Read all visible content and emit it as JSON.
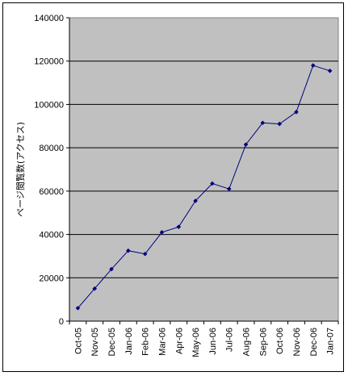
{
  "chart_data": {
    "type": "line",
    "title": "",
    "xlabel": "",
    "ylabel": "ページ閲覧数(アクセス)",
    "categories": [
      "Oct-05",
      "Nov-05",
      "Dec-05",
      "Jan-06",
      "Feb-06",
      "Mar-06",
      "Apr-06",
      "May-06",
      "Jun-06",
      "Jul-06",
      "Aug-06",
      "Sep-06",
      "Oct-06",
      "Nov-06",
      "Dec-06",
      "Jan-07"
    ],
    "series": [
      {
        "values": [
          6000,
          15000,
          24000,
          32500,
          31000,
          41000,
          43500,
          55500,
          63500,
          61000,
          81500,
          91500,
          91000,
          96500,
          118000,
          115500
        ],
        "color": "#000080"
      }
    ],
    "ylim": [
      0,
      140000
    ],
    "ytick_step": 20000,
    "yticks": [
      "0",
      "20000",
      "40000",
      "60000",
      "80000",
      "100000",
      "120000",
      "140000"
    ],
    "grid": true,
    "legend": "none",
    "colors": {
      "plot_background": "#c0c0c0",
      "gridline": "#000000",
      "line": "#000080",
      "marker": "#000080"
    }
  }
}
